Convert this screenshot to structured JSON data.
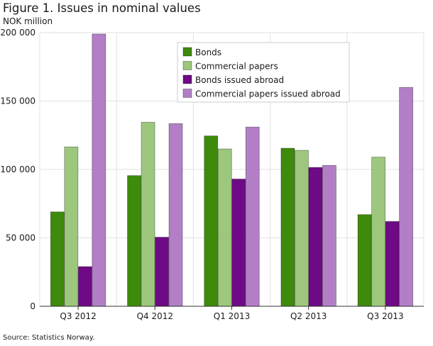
{
  "chart_data": {
    "type": "bar",
    "title": "Figure 1. Issues in nominal values",
    "ylabel": "NOK million",
    "xlabel": "",
    "categories": [
      "Q3 2012",
      "Q4 2012",
      "Q1 2013",
      "Q2 2013",
      "Q3 2013"
    ],
    "yticks": [
      0,
      50000,
      100000,
      150000,
      200000
    ],
    "ytick_labels": [
      "0",
      "50 000",
      "100 000",
      "150 000",
      "200 000"
    ],
    "ylim": [
      0,
      200000
    ],
    "grid": true,
    "legend_position": "top-right",
    "series": [
      {
        "name": "Bonds",
        "color": "#3e8a0a",
        "values": [
          69000,
          95500,
          124500,
          115500,
          67000
        ]
      },
      {
        "name": "Commercial papers",
        "color": "#9cc77d",
        "values": [
          116500,
          134500,
          115000,
          114000,
          109000
        ]
      },
      {
        "name": "Bonds issued abroad",
        "color": "#6e0a85",
        "values": [
          29000,
          50500,
          93000,
          101500,
          62000
        ]
      },
      {
        "name": "Commercial papers issued abroad",
        "color": "#b27fc6",
        "values": [
          199000,
          133500,
          131000,
          103000,
          160000
        ]
      }
    ],
    "source": "Source: Statistics Norway."
  }
}
